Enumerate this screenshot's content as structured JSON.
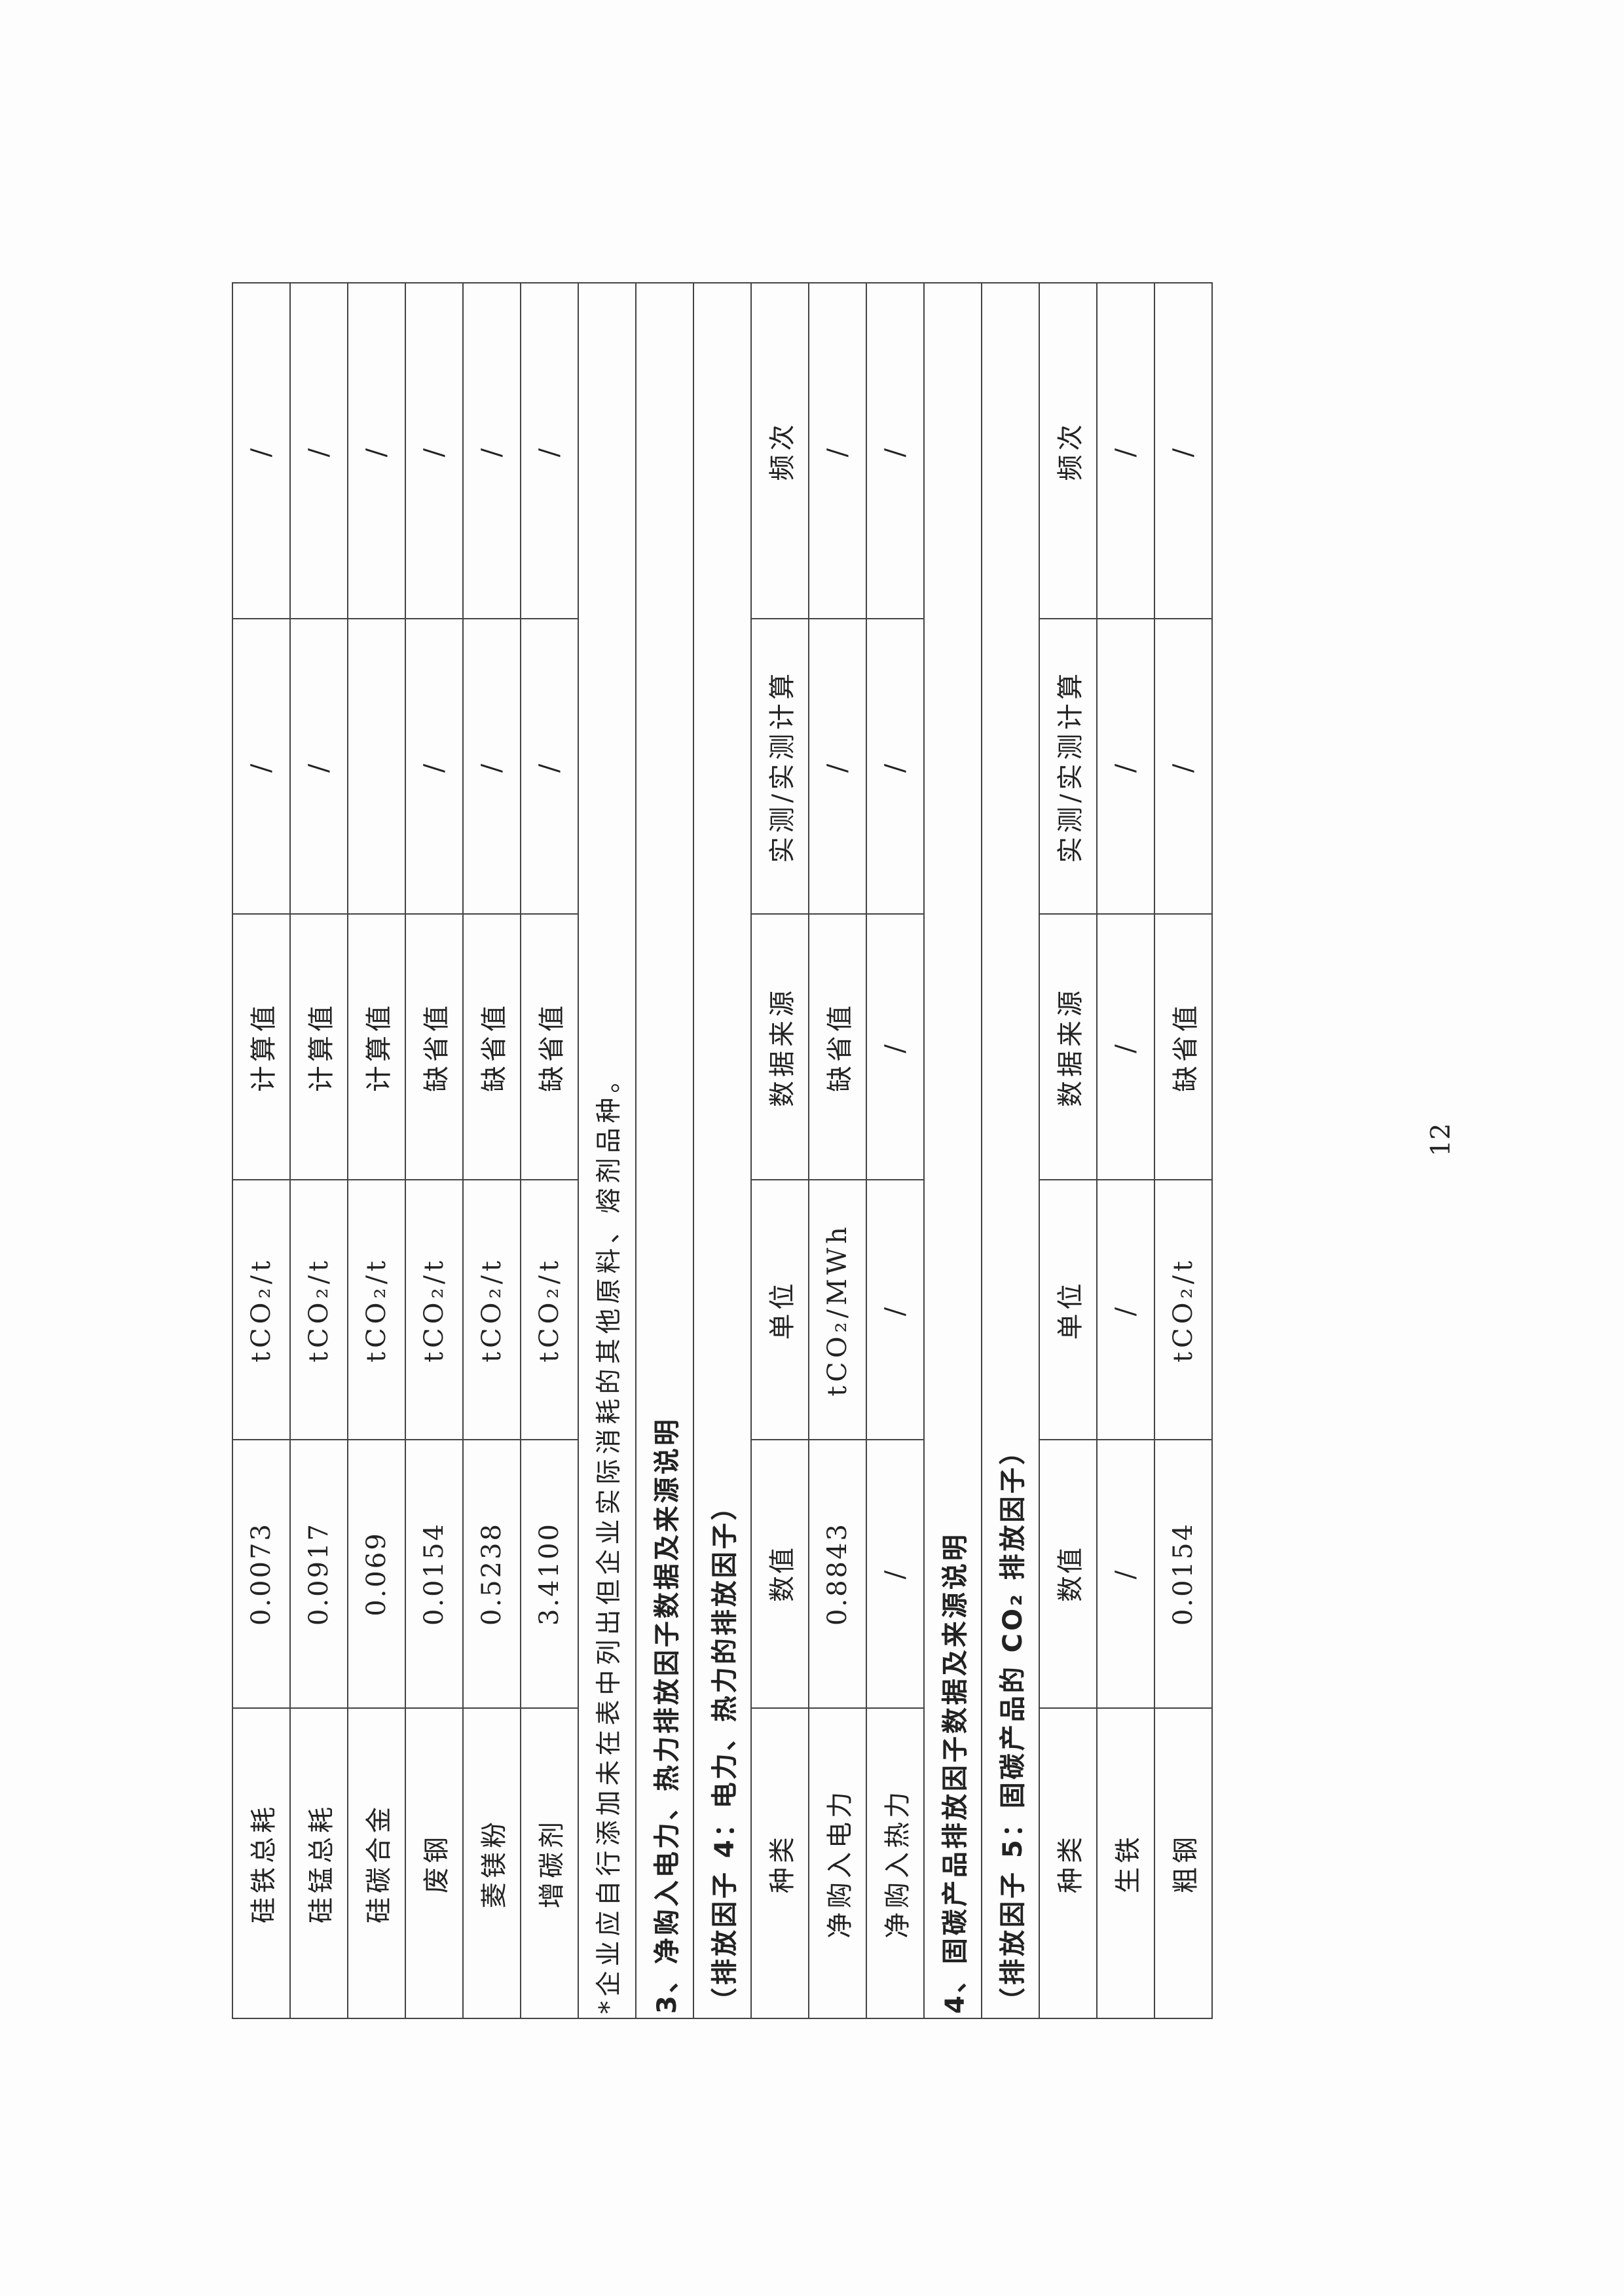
{
  "page_number": "12",
  "table": {
    "rows": [
      {
        "type": "data",
        "cells": [
          "硅铁总耗",
          "0.0073",
          "tCO₂/t",
          "计算值",
          "/",
          "/"
        ]
      },
      {
        "type": "data",
        "cells": [
          "硅锰总耗",
          "0.0917",
          "tCO₂/t",
          "计算值",
          "/",
          "/"
        ]
      },
      {
        "type": "data",
        "cells": [
          "硅碳合金",
          "0.069",
          "tCO₂/t",
          "计算值",
          "",
          "/"
        ]
      },
      {
        "type": "data",
        "cells": [
          "废钢",
          "0.0154",
          "tCO₂/t",
          "缺省值",
          "/",
          "/"
        ]
      },
      {
        "type": "data",
        "cells": [
          "菱镁粉",
          "0.5238",
          "tCO₂/t",
          "缺省值",
          "/",
          "/"
        ]
      },
      {
        "type": "data",
        "cells": [
          "增碳剂",
          "3.4100",
          "tCO₂/t",
          "缺省值",
          "/",
          "/"
        ]
      },
      {
        "type": "note",
        "text": "*企业应自行添加未在表中列出但企业实际消耗的其他原料、熔剂品种。"
      },
      {
        "type": "heading",
        "text": "3、净购入电力、热力排放因子数据及来源说明"
      },
      {
        "type": "heading",
        "text": "（排放因子 4：电力、热力的排放因子）"
      },
      {
        "type": "data",
        "cells": [
          "种类",
          "数值",
          "单位",
          "数据来源",
          "实测/实测计算",
          "频次"
        ]
      },
      {
        "type": "data",
        "cells": [
          "净购入电力",
          "0.8843",
          "tCO₂/MWh",
          "缺省值",
          "/",
          "/"
        ]
      },
      {
        "type": "data",
        "cells": [
          "净购入热力",
          "/",
          "/",
          "/",
          "/",
          "/"
        ]
      },
      {
        "type": "heading",
        "text": "4、固碳产品排放因子数据及来源说明"
      },
      {
        "type": "heading",
        "text": "（排放因子 5：固碳产品的 CO₂ 排放因子）"
      },
      {
        "type": "data",
        "cells": [
          "种类",
          "数值",
          "单位",
          "数据来源",
          "实测/实测计算",
          "频次"
        ]
      },
      {
        "type": "data",
        "cells": [
          "生铁",
          "/",
          "/",
          "/",
          "/",
          "/"
        ]
      },
      {
        "type": "data",
        "cells": [
          "粗钢",
          "0.0154",
          "tCO₂/t",
          "缺省值",
          "/",
          "/"
        ]
      }
    ]
  }
}
